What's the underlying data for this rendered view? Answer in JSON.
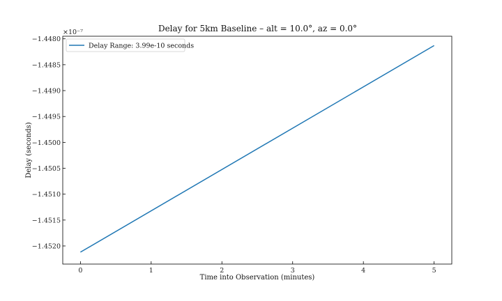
{
  "chart_data": {
    "type": "line",
    "title": "Delay for 5km Baseline – alt = 10.0°, az = 0.0°",
    "xlabel": "Time into Observation (minutes)",
    "ylabel": "Delay (seconds)",
    "offset_text": "×10⁻⁷",
    "xlim": [
      -0.25,
      5.25
    ],
    "ylim": [
      -1.45235,
      -1.44795
    ],
    "xticks": [
      0,
      1,
      2,
      3,
      4,
      5
    ],
    "xtick_labels": [
      "0",
      "1",
      "2",
      "3",
      "4",
      "5"
    ],
    "yticks": [
      -1.452,
      -1.4515,
      -1.451,
      -1.4505,
      -1.45,
      -1.4495,
      -1.449,
      -1.4485,
      -1.448
    ],
    "ytick_labels": [
      "−1.4520",
      "−1.4515",
      "−1.4510",
      "−1.4505",
      "−1.4500",
      "−1.4495",
      "−1.4490",
      "−1.4485",
      "−1.4480"
    ],
    "grid": false,
    "legend_position": "top-left",
    "series": [
      {
        "name": "Delay Range: 3.99e-10 seconds",
        "color": "#1f77b4",
        "x": [
          0,
          5
        ],
        "y": [
          -1.45212,
          -1.44813
        ]
      }
    ]
  }
}
